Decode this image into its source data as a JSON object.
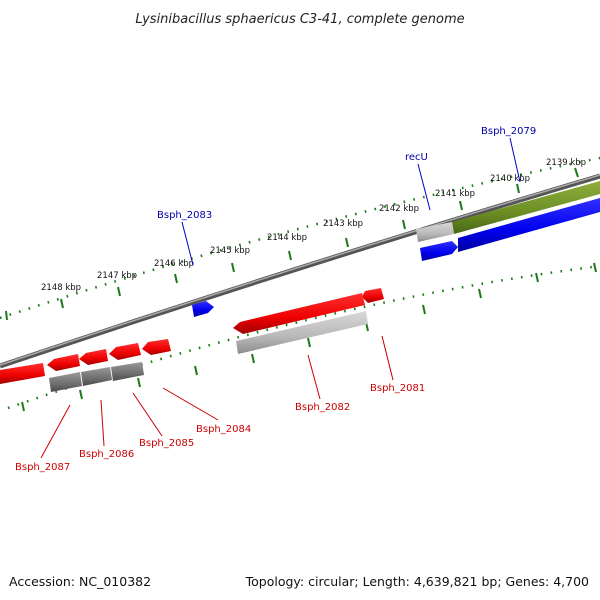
{
  "title": "Lysinibacillus sphaericus C3-41, complete genome",
  "footer": {
    "accession": "Accession: NC_010382",
    "summary": "Topology: circular; Length: 4,639,821 bp; Genes: 4,700"
  },
  "colors": {
    "backbone": "#808080",
    "tick": "#1a7a1a",
    "forward_gene": "#0000ee",
    "reverse_gene": "#ee0000",
    "cds_gray": "#888888",
    "cds_light": "#bbbbbb",
    "cds_olive": "#6b8e23",
    "label_forward": "#0000aa",
    "label_reverse": "#cc0000"
  },
  "tick_labels": [
    "2139 kbp",
    "2140 kbp",
    "2141 kbp",
    "2142 kbp",
    "2143 kbp",
    "2144 kbp",
    "2145 kbp",
    "2146 kbp",
    "2147 kbp",
    "2148 kbp"
  ],
  "genes_forward": [
    "Bsph_2079",
    "recU",
    "Bsph_2083"
  ],
  "genes_reverse": [
    "Bsph_2081",
    "Bsph_2082",
    "Bsph_2084",
    "Bsph_2085",
    "Bsph_2086",
    "Bsph_2087"
  ]
}
